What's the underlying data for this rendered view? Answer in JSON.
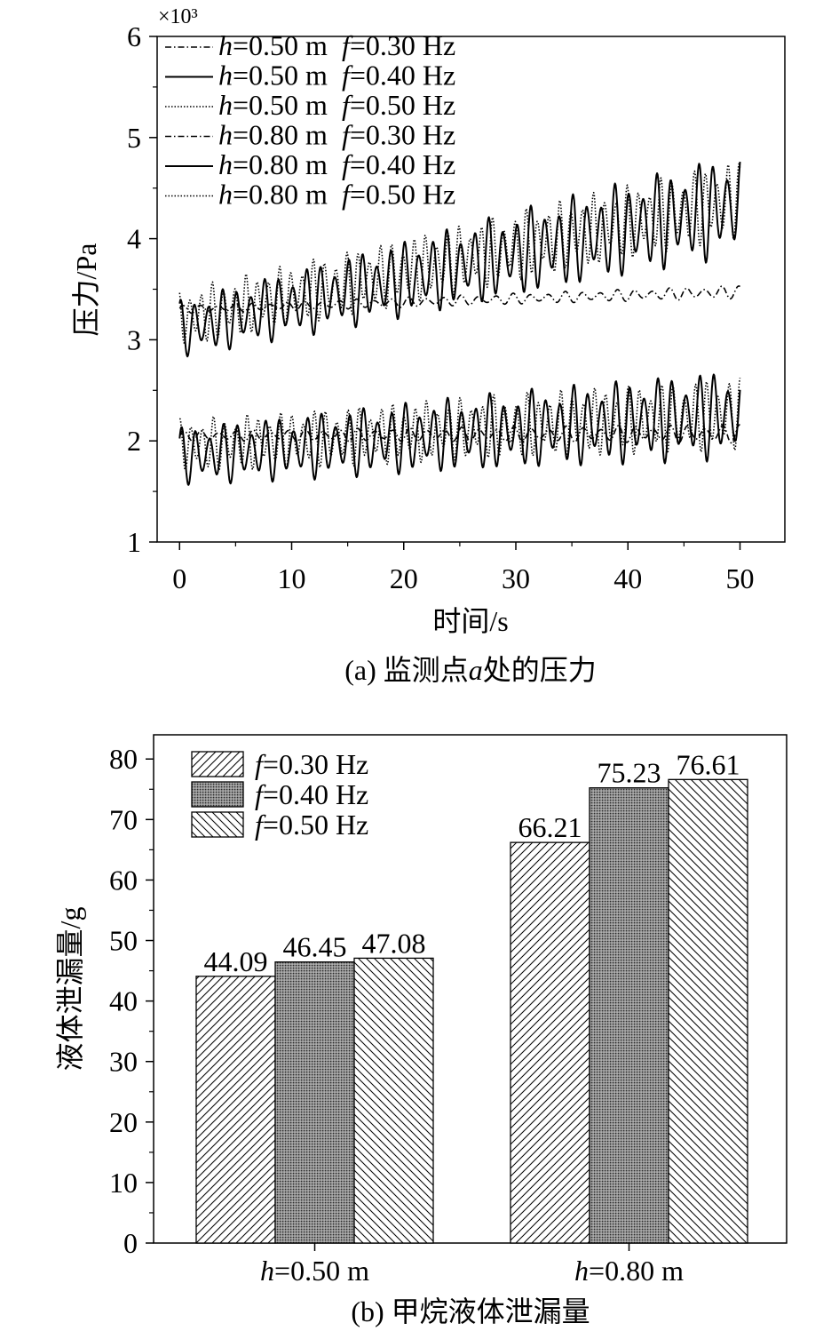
{
  "chart_data": [
    {
      "type": "line",
      "caption": "(a) 监测点a处的压力",
      "caption_prefix": "(a) 监测点",
      "caption_var": "a",
      "caption_suffix": "处的压力",
      "xlabel": "时间/s",
      "ylabel": "压力/Pa",
      "y_multiplier": "×10³",
      "xlim": [
        -2,
        54
      ],
      "ylim": [
        1,
        6
      ],
      "xticks": [
        "0",
        "10",
        "20",
        "30",
        "40",
        "50"
      ],
      "yticks": [
        "1",
        "2",
        "3",
        "4",
        "5",
        "6"
      ],
      "legend_position": "top-left",
      "series": [
        {
          "name": "h=0.50 m  f=0.30 Hz",
          "h": "0.50 m",
          "f": "0.30 Hz",
          "style": "dashdot",
          "base": 2.05,
          "slope": 0.0005,
          "amp0": 0.04,
          "amp_slope": 0.0006,
          "period": 1.55,
          "phase": 0.0
        },
        {
          "name": "h=0.50 m  f=0.40 Hz",
          "h": "0.50 m",
          "f": "0.40 Hz",
          "style": "solid",
          "base": 1.85,
          "slope": 0.0085,
          "amp0": 0.22,
          "amp_slope": 0.0025,
          "period": 1.25,
          "phase": 0.7
        },
        {
          "name": "h=0.50 m  f=0.50 Hz",
          "h": "0.50 m",
          "f": "0.50 Hz",
          "style": "dotted",
          "base": 1.95,
          "slope": 0.0065,
          "amp0": 0.2,
          "amp_slope": 0.0015,
          "period": 1.0,
          "phase": 1.4
        },
        {
          "name": "h=0.80 m  f=0.30 Hz",
          "h": "0.80 m",
          "f": "0.30 Hz",
          "style": "dashdot",
          "base": 3.3,
          "slope": 0.0035,
          "amp0": 0.03,
          "amp_slope": 0.0004,
          "period": 1.55,
          "phase": 0.3
        },
        {
          "name": "h=0.80 m  f=0.40 Hz",
          "h": "0.80 m",
          "f": "0.40 Hz",
          "style": "solid",
          "base": 3.1,
          "slope": 0.025,
          "amp0": 0.22,
          "amp_slope": 0.0035,
          "period": 1.25,
          "phase": 1.1
        },
        {
          "name": "h=0.80 m  f=0.50 Hz",
          "h": "0.80 m",
          "f": "0.50 Hz",
          "style": "dotted",
          "base": 3.2,
          "slope": 0.024,
          "amp0": 0.22,
          "amp_slope": 0.0015,
          "period": 1.0,
          "phase": 2.0
        }
      ]
    },
    {
      "type": "bar",
      "caption": "(b) 甲烷液体泄漏量",
      "ylabel": "液体泄漏量/g",
      "ylim": [
        0,
        84
      ],
      "yticks": [
        "0",
        "10",
        "20",
        "30",
        "40",
        "50",
        "60",
        "70",
        "80"
      ],
      "categories": [
        "h=0.50 m",
        "h=0.80 m"
      ],
      "category_var": "h",
      "category_values": [
        "=0.50 m",
        "=0.80 m"
      ],
      "legend_position": "top-left",
      "series": [
        {
          "name": "f=0.30 Hz",
          "var": "f",
          "value_text": "=0.30 Hz",
          "pattern": "diag-up",
          "values": [
            44.09,
            66.21
          ],
          "labels": [
            "44.09",
            "66.21"
          ]
        },
        {
          "name": "f=0.40 Hz",
          "var": "f",
          "value_text": "=0.40 Hz",
          "pattern": "dots",
          "values": [
            46.45,
            75.23
          ],
          "labels": [
            "46.45",
            "75.23"
          ]
        },
        {
          "name": "f=0.50 Hz",
          "var": "f",
          "value_text": "=0.50 Hz",
          "pattern": "diag-down",
          "values": [
            47.08,
            76.61
          ],
          "labels": [
            "47.08",
            "76.61"
          ]
        }
      ]
    }
  ]
}
